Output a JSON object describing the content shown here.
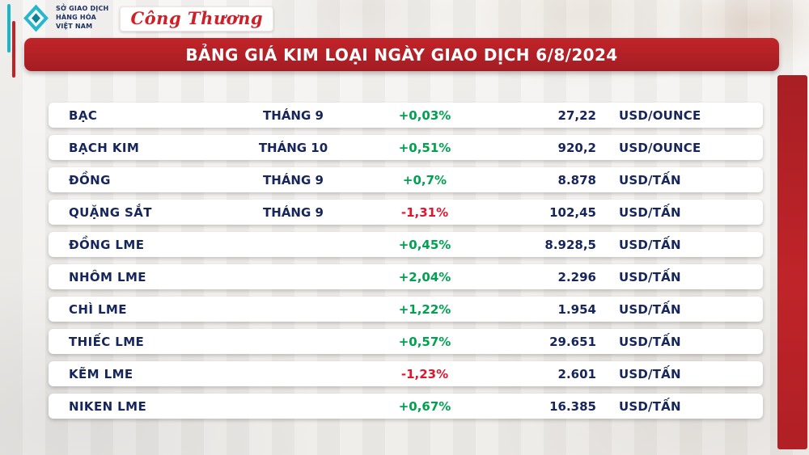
{
  "header": {
    "exchange": {
      "lines": [
        "SỞ GIAO DỊCH",
        "HÀNG HÓA",
        "VIỆT NAM"
      ]
    },
    "newspaper": {
      "logo_text": "Công Thương"
    }
  },
  "banner": {
    "title": "BẢNG GIÁ KIM LOẠI NGÀY GIAO DỊCH 6/8/2024"
  },
  "chart_data": {
    "type": "table",
    "title": "BẢNG GIÁ KIM LOẠI NGÀY GIAO DỊCH 6/8/2024",
    "columns": [
      "metal",
      "contract_month",
      "change_percent",
      "price",
      "unit"
    ],
    "rows": [
      {
        "name": "BẠC",
        "month": "THÁNG 9",
        "change": "+0,03%",
        "direction": "up",
        "price": "27,22",
        "unit": "USD/OUNCE"
      },
      {
        "name": "BẠCH KIM",
        "month": "THÁNG 10",
        "change": "+0,51%",
        "direction": "up",
        "price": "920,2",
        "unit": "USD/OUNCE"
      },
      {
        "name": "ĐỒNG",
        "month": "THÁNG 9",
        "change": "+0,7%",
        "direction": "up",
        "price": "8.878",
        "unit": "USD/TẤN"
      },
      {
        "name": "QUẶNG SẮT",
        "month": "THÁNG 9",
        "change": "-1,31%",
        "direction": "down",
        "price": "102,45",
        "unit": "USD/TẤN"
      },
      {
        "name": "ĐỒNG LME",
        "month": "",
        "change": "+0,45%",
        "direction": "up",
        "price": "8.928,5",
        "unit": "USD/TẤN"
      },
      {
        "name": "NHÔM LME",
        "month": "",
        "change": "+2,04%",
        "direction": "up",
        "price": "2.296",
        "unit": "USD/TẤN"
      },
      {
        "name": "CHÌ LME",
        "month": "",
        "change": "+1,22%",
        "direction": "up",
        "price": "1.954",
        "unit": "USD/TẤN"
      },
      {
        "name": "THIẾC LME",
        "month": "",
        "change": "+0,57%",
        "direction": "up",
        "price": "29.651",
        "unit": "USD/TẤN"
      },
      {
        "name": "KẼM LME",
        "month": "",
        "change": "-1,23%",
        "direction": "down",
        "price": "2.601",
        "unit": "USD/TẤN"
      },
      {
        "name": "NIKEN LME",
        "month": "",
        "change": "+0,67%",
        "direction": "up",
        "price": "16.385",
        "unit": "USD/TẤN"
      }
    ]
  },
  "colors": {
    "banner_red": "#b02025",
    "right_bar_red": "#bf2429",
    "text_navy": "#16265c",
    "up_green": "#00a14f",
    "down_red": "#e3152b",
    "logo_teal": "#29b6cd",
    "newspaper_red": "#cf2027"
  }
}
